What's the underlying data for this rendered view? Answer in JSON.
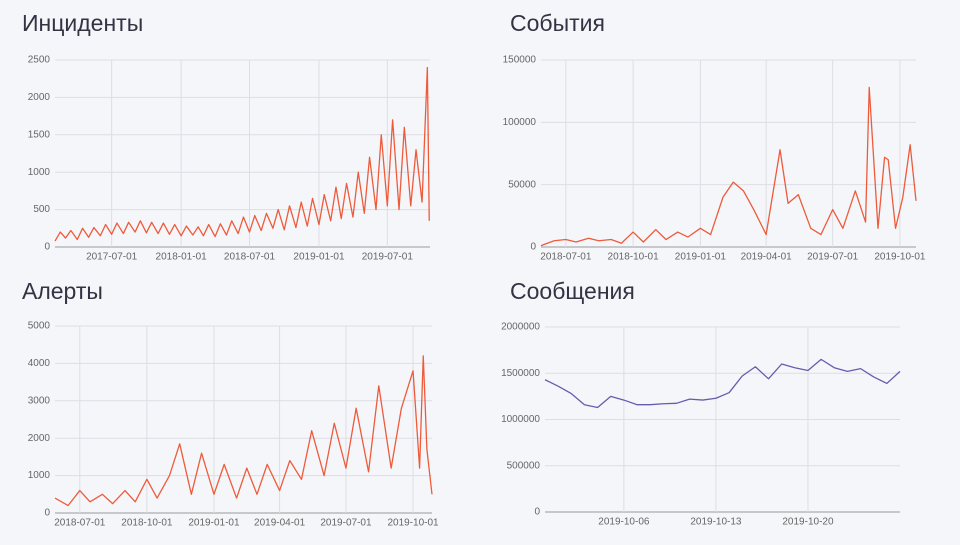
{
  "chart_data": [
    {
      "type": "line",
      "title": "Инциденты",
      "color": "#ee5b3b",
      "grid": true,
      "xlim": [
        "2017-02-01",
        "2019-10-22"
      ],
      "xticks": [
        "2017-07-01",
        "2018-01-01",
        "2018-07-01",
        "2019-01-01",
        "2019-07-01"
      ],
      "ylim": [
        0,
        2500
      ],
      "yticks": [
        0,
        500,
        1000,
        1500,
        2000,
        2500
      ],
      "x": [
        "2017-02-01",
        "2017-02-15",
        "2017-03-01",
        "2017-03-15",
        "2017-04-01",
        "2017-04-15",
        "2017-05-01",
        "2017-05-15",
        "2017-06-01",
        "2017-06-15",
        "2017-07-01",
        "2017-07-15",
        "2017-08-01",
        "2017-08-15",
        "2017-09-01",
        "2017-09-15",
        "2017-10-01",
        "2017-10-15",
        "2017-11-01",
        "2017-11-15",
        "2017-12-01",
        "2017-12-15",
        "2018-01-01",
        "2018-01-15",
        "2018-02-01",
        "2018-02-15",
        "2018-03-01",
        "2018-03-15",
        "2018-04-01",
        "2018-04-15",
        "2018-05-01",
        "2018-05-15",
        "2018-06-01",
        "2018-06-15",
        "2018-07-01",
        "2018-07-15",
        "2018-08-01",
        "2018-08-15",
        "2018-09-01",
        "2018-09-15",
        "2018-10-01",
        "2018-10-15",
        "2018-11-01",
        "2018-11-15",
        "2018-12-01",
        "2018-12-15",
        "2019-01-01",
        "2019-01-15",
        "2019-02-01",
        "2019-02-15",
        "2019-03-01",
        "2019-03-15",
        "2019-04-01",
        "2019-04-15",
        "2019-05-01",
        "2019-05-15",
        "2019-06-01",
        "2019-06-15",
        "2019-07-01",
        "2019-07-15",
        "2019-08-01",
        "2019-08-15",
        "2019-09-01",
        "2019-09-15",
        "2019-10-01",
        "2019-10-15",
        "2019-10-20"
      ],
      "values": [
        80,
        200,
        120,
        220,
        100,
        250,
        130,
        260,
        150,
        300,
        170,
        320,
        180,
        330,
        200,
        350,
        190,
        330,
        180,
        320,
        170,
        300,
        150,
        280,
        160,
        270,
        150,
        300,
        140,
        310,
        160,
        350,
        180,
        400,
        200,
        420,
        220,
        450,
        250,
        500,
        230,
        550,
        260,
        600,
        280,
        650,
        300,
        700,
        350,
        800,
        380,
        850,
        400,
        1000,
        450,
        1200,
        500,
        1500,
        550,
        1700,
        500,
        1600,
        550,
        1300,
        600,
        2400,
        350
      ]
    },
    {
      "type": "line",
      "title": "События",
      "color": "#ee5b3b",
      "grid": true,
      "xlim": [
        "2018-05-28",
        "2019-10-23"
      ],
      "xticks": [
        "2018-07-01",
        "2018-10-01",
        "2019-01-01",
        "2019-04-01",
        "2019-07-01",
        "2019-10-01"
      ],
      "ylim": [
        0,
        150000
      ],
      "yticks": [
        0,
        50000,
        100000,
        150000
      ],
      "x": [
        "2018-05-28",
        "2018-06-01",
        "2018-06-15",
        "2018-07-01",
        "2018-07-15",
        "2018-08-01",
        "2018-08-15",
        "2018-09-01",
        "2018-09-15",
        "2018-10-01",
        "2018-10-15",
        "2018-11-01",
        "2018-11-15",
        "2018-12-01",
        "2018-12-15",
        "2019-01-01",
        "2019-01-15",
        "2019-02-01",
        "2019-02-15",
        "2019-03-01",
        "2019-03-15",
        "2019-04-01",
        "2019-04-20",
        "2019-05-01",
        "2019-05-15",
        "2019-06-01",
        "2019-06-15",
        "2019-07-01",
        "2019-07-15",
        "2019-08-01",
        "2019-08-15",
        "2019-08-20",
        "2019-09-01",
        "2019-09-10",
        "2019-09-15",
        "2019-09-25",
        "2019-10-05",
        "2019-10-15",
        "2019-10-23"
      ],
      "values": [
        1000,
        2000,
        5000,
        6000,
        4000,
        7000,
        5000,
        6000,
        3000,
        12000,
        4000,
        14000,
        6000,
        12000,
        8000,
        15000,
        10000,
        40000,
        52000,
        45000,
        30000,
        10000,
        78000,
        35000,
        42000,
        15000,
        10000,
        30000,
        15000,
        45000,
        20000,
        128000,
        15000,
        72000,
        70000,
        15000,
        40000,
        82000,
        37000
      ]
    },
    {
      "type": "line",
      "title": "Алерты",
      "color": "#ee5b3b",
      "grid": true,
      "xlim": [
        "2018-05-28",
        "2019-10-27"
      ],
      "xticks": [
        "2018-07-01",
        "2018-10-01",
        "2019-01-01",
        "2019-04-01",
        "2019-07-01",
        "2019-10-01"
      ],
      "ylim": [
        0,
        5000
      ],
      "yticks": [
        0,
        1000,
        2000,
        3000,
        4000,
        5000
      ],
      "x": [
        "2018-05-28",
        "2018-06-15",
        "2018-07-01",
        "2018-07-15",
        "2018-08-01",
        "2018-08-15",
        "2018-09-01",
        "2018-09-15",
        "2018-10-01",
        "2018-10-15",
        "2018-11-01",
        "2018-11-15",
        "2018-12-01",
        "2018-12-15",
        "2019-01-01",
        "2019-01-15",
        "2019-02-01",
        "2019-02-15",
        "2019-03-01",
        "2019-03-15",
        "2019-04-01",
        "2019-04-15",
        "2019-05-01",
        "2019-05-15",
        "2019-06-01",
        "2019-06-15",
        "2019-07-01",
        "2019-07-15",
        "2019-08-01",
        "2019-08-15",
        "2019-09-01",
        "2019-09-15",
        "2019-10-01",
        "2019-10-10",
        "2019-10-15",
        "2019-10-20",
        "2019-10-27"
      ],
      "values": [
        400,
        200,
        600,
        300,
        500,
        250,
        600,
        300,
        900,
        400,
        1000,
        1850,
        500,
        1600,
        500,
        1300,
        400,
        1200,
        500,
        1300,
        600,
        1400,
        900,
        2200,
        1000,
        2400,
        1200,
        2800,
        1100,
        3400,
        1200,
        2800,
        3800,
        1200,
        4200,
        1700,
        500
      ]
    },
    {
      "type": "line",
      "title": "Сообщения",
      "color": "#6a5aad",
      "grid": true,
      "xlim": [
        "2019-09-30",
        "2019-10-27"
      ],
      "xticks": [
        "2019-10-06",
        "2019-10-13",
        "2019-10-20"
      ],
      "ylim": [
        0,
        2000000
      ],
      "yticks": [
        0,
        500000,
        1000000,
        1500000,
        2000000
      ],
      "x": [
        "2019-09-30",
        "2019-10-01",
        "2019-10-02",
        "2019-10-03",
        "2019-10-04",
        "2019-10-05",
        "2019-10-06",
        "2019-10-07",
        "2019-10-08",
        "2019-10-09",
        "2019-10-10",
        "2019-10-11",
        "2019-10-12",
        "2019-10-13",
        "2019-10-14",
        "2019-10-15",
        "2019-10-16",
        "2019-10-17",
        "2019-10-18",
        "2019-10-19",
        "2019-10-20",
        "2019-10-21",
        "2019-10-22",
        "2019-10-23",
        "2019-10-24",
        "2019-10-25",
        "2019-10-26",
        "2019-10-27"
      ],
      "values": [
        1430000,
        1360000,
        1280000,
        1160000,
        1130000,
        1250000,
        1210000,
        1160000,
        1160000,
        1170000,
        1175000,
        1220000,
        1210000,
        1230000,
        1290000,
        1470000,
        1570000,
        1440000,
        1600000,
        1560000,
        1530000,
        1650000,
        1560000,
        1520000,
        1550000,
        1460000,
        1390000,
        1520000
      ]
    }
  ]
}
